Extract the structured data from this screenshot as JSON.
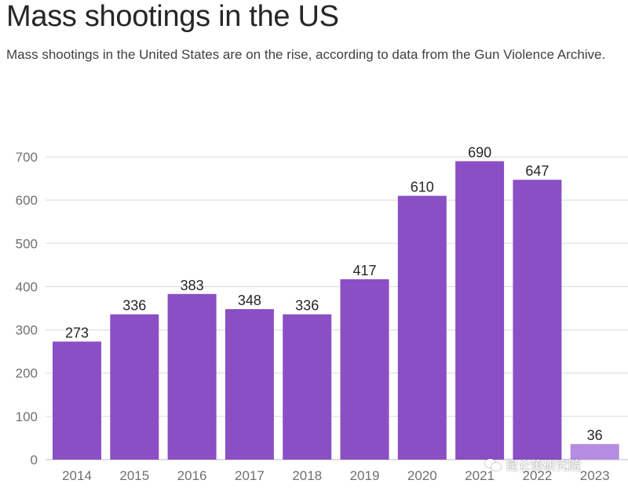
{
  "header": {
    "title": "Mass shootings in the US",
    "subtitle": "Mass shootings in the United States are on the rise, according to data from the Gun Violence Archive."
  },
  "chart_data": {
    "type": "bar",
    "title": "Mass shootings in the US",
    "xlabel": "",
    "ylabel": "",
    "ylim": [
      0,
      700
    ],
    "yticks": [
      0,
      100,
      200,
      300,
      400,
      500,
      600,
      700
    ],
    "categories": [
      "2014",
      "2015",
      "2016",
      "2017",
      "2018",
      "2019",
      "2020",
      "2021",
      "2022",
      "2023"
    ],
    "values": [
      273,
      336,
      383,
      348,
      336,
      417,
      610,
      690,
      647,
      36
    ],
    "grid": true,
    "colors": {
      "bar": "#8a4fc4",
      "bar_highlight": "#b58de0",
      "grid": "#d9d9d9",
      "tick_label": "#707070",
      "data_label": "#262626"
    }
  },
  "watermark": {
    "text": "昆仑策研究院",
    "icon": "wechat-icon"
  }
}
